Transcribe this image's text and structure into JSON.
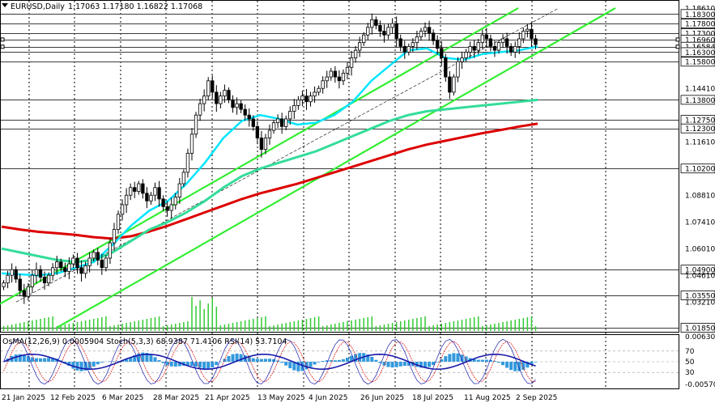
{
  "header": {
    "symbol": "EURUSD,Daily",
    "ohlc": "1.17063 1.17180 1.16822 1.17068",
    "indicators": "OsMA(12,26,9) 0.0005904  Stoch(5,3,3) 68.9387 71.4106  RSI(14) 53.7104"
  },
  "colors": {
    "background": "#ffffff",
    "candles": "#000000",
    "ema_short": "#00e5ff",
    "ema_mid": "#33dd99",
    "ema_long": "#dd0000",
    "channel": "#33ee33",
    "osma": "#3399dd",
    "rsi": "#1a1aaa",
    "stoch_main": "#1a1aaa",
    "stoch_signal": "#dd0000",
    "volume": "#33cc33",
    "level_lines": "#3c3c3c",
    "grid": "#000000"
  },
  "chart_data": {
    "type": "candlestick",
    "symbol": "EURUSD",
    "timeframe": "Daily",
    "ohlc_last": {
      "open": 1.17063,
      "high": 1.1718,
      "low": 1.16822,
      "close": 1.17068
    },
    "ylim": [
      1.0185,
      1.1861
    ],
    "x_tick_labels": [
      "21 Jan 2025",
      "12 Feb 2025",
      "6 Mar 2025",
      "28 Mar 2025",
      "21 Apr 2025",
      "13 May 2025",
      "4 Jun 2025",
      "26 Jun 2025",
      "18 Jul 2025",
      "11 Aug 2025",
      "2 Sep 2025"
    ],
    "price_scale_labels": [
      "1.18610",
      "1.18300",
      "1.17800",
      "1.17300",
      "1.16960",
      "1.16584",
      "1.16300",
      "1.15800",
      "1.14410",
      "1.13800",
      "1.12750",
      "1.12300",
      "1.11610",
      "1.10200",
      "1.08810",
      "1.07410",
      "1.06010",
      "1.04900",
      "1.04610",
      "1.03550",
      "1.03210",
      "1.01850"
    ],
    "levels": [
      1.183,
      1.178,
      1.173,
      1.1696,
      1.16584,
      1.163,
      1.158,
      1.138,
      1.1275,
      1.123,
      1.102,
      1.049,
      1.0355,
      1.0185
    ],
    "close_series": [
      1.042,
      1.046,
      1.049,
      1.044,
      1.038,
      1.035,
      1.04,
      1.046,
      1.049,
      1.045,
      1.042,
      1.046,
      1.05,
      1.053,
      1.05,
      1.048,
      1.052,
      1.055,
      1.05,
      1.047,
      1.051,
      1.055,
      1.058,
      1.054,
      1.05,
      1.055,
      1.063,
      1.07,
      1.078,
      1.083,
      1.088,
      1.092,
      1.09,
      1.094,
      1.089,
      1.085,
      1.088,
      1.092,
      1.086,
      1.082,
      1.08,
      1.083,
      1.087,
      1.094,
      1.1,
      1.11,
      1.12,
      1.13,
      1.136,
      1.14,
      1.148,
      1.142,
      1.136,
      1.14,
      1.143,
      1.138,
      1.134,
      1.136,
      1.133,
      1.13,
      1.128,
      1.124,
      1.118,
      1.112,
      1.118,
      1.122,
      1.126,
      1.128,
      1.124,
      1.128,
      1.132,
      1.135,
      1.138,
      1.14,
      1.137,
      1.14,
      1.142,
      1.144,
      1.148,
      1.15,
      1.153,
      1.15,
      1.148,
      1.152,
      1.155,
      1.16,
      1.164,
      1.168,
      1.172,
      1.176,
      1.18,
      1.177,
      1.174,
      1.172,
      1.176,
      1.178,
      1.17,
      1.166,
      1.163,
      1.166,
      1.168,
      1.171,
      1.174,
      1.176,
      1.173,
      1.169,
      1.165,
      1.16,
      1.15,
      1.142,
      1.15,
      1.158,
      1.16,
      1.163,
      1.166,
      1.164,
      1.168,
      1.172,
      1.17,
      1.166,
      1.164,
      1.168,
      1.17,
      1.166,
      1.163,
      1.166,
      1.17,
      1.174,
      1.175,
      1.17,
      1.167
    ],
    "ema_short": [
      1.047,
      1.0465,
      1.046,
      1.047,
      1.05,
      1.053,
      1.062,
      1.072,
      1.08,
      1.085,
      1.094,
      1.105,
      1.118,
      1.127,
      1.13,
      1.128,
      1.125,
      1.126,
      1.13,
      1.137,
      1.148,
      1.156,
      1.164,
      1.165,
      1.16,
      1.159,
      1.162,
      1.163,
      1.164,
      1.166
    ],
    "ema_mid": [
      1.06,
      1.058,
      1.056,
      1.054,
      1.053,
      1.054,
      1.058,
      1.064,
      1.07,
      1.074,
      1.079,
      1.085,
      1.092,
      1.098,
      1.102,
      1.105,
      1.108,
      1.111,
      1.115,
      1.119,
      1.123,
      1.127,
      1.13,
      1.132,
      1.133,
      1.134,
      1.135,
      1.136,
      1.137,
      1.138
    ],
    "ema_long": [
      1.0715,
      1.07,
      1.0688,
      1.068,
      1.0672,
      1.066,
      1.0652,
      1.0665,
      1.069,
      1.072,
      1.0755,
      1.079,
      1.0825,
      1.086,
      1.089,
      1.0915,
      1.094,
      1.097,
      1.1,
      1.103,
      1.106,
      1.109,
      1.112,
      1.1145,
      1.1165,
      1.1185,
      1.1205,
      1.1222,
      1.124,
      1.1255
    ],
    "indicators": {
      "osma": {
        "label": "OsMA(12,26,9)",
        "value": 0.0005904
      },
      "stochastic": {
        "label": "Stoch(5,3,3)",
        "main": 68.9387,
        "signal": 71.4106
      },
      "rsi": {
        "label": "RSI(14)",
        "value": 53.7104
      },
      "scale_labels": [
        "0.006303",
        "70",
        "50",
        "30",
        "-0.00570"
      ]
    }
  }
}
